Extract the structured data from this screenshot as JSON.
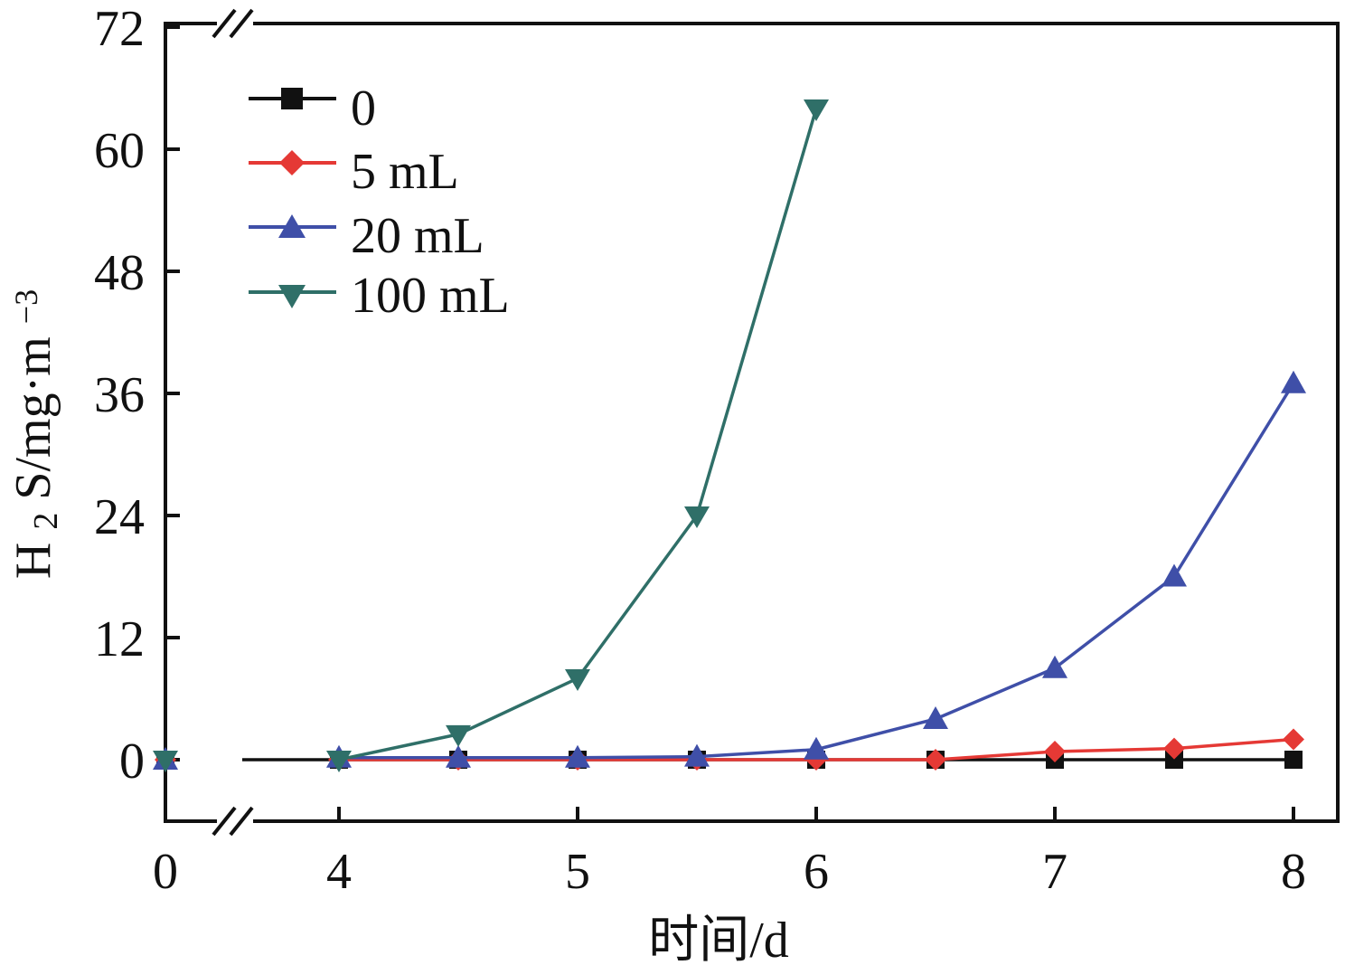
{
  "chart_data": {
    "type": "line",
    "title": "",
    "xlabel": "时间/d",
    "ylabel": "H2S/mg·m−3",
    "ylabel_parts": {
      "prefix": "H",
      "subscript": "2",
      "middle": "S/mg·m",
      "superscript": "−3"
    },
    "x_ticks": [
      "0",
      "4",
      "5",
      "6",
      "7",
      "8"
    ],
    "y_ticks": [
      "0",
      "12",
      "24",
      "36",
      "48",
      "60",
      "72"
    ],
    "xlim": [
      0,
      8
    ],
    "ylim": [
      -6,
      72
    ],
    "x_axis_break": [
      0,
      4
    ],
    "y_axis_break": true,
    "grid": false,
    "legend_position": "top-left",
    "x": [
      0,
      4,
      4.5,
      5,
      5.5,
      6,
      6.5,
      7,
      7.5,
      8
    ],
    "series": [
      {
        "name": "0",
        "color": "#111111",
        "marker": "square",
        "x": [
          0,
          4,
          4.5,
          5,
          5.5,
          6,
          6.5,
          7,
          7.5,
          8
        ],
        "values": [
          0,
          0,
          0,
          0,
          0,
          0,
          0,
          0,
          0,
          0
        ]
      },
      {
        "name": "5 mL",
        "color": "#e53935",
        "marker": "diamond",
        "x": [
          0,
          4,
          4.5,
          5,
          5.5,
          6,
          6.5,
          7,
          7.5,
          8
        ],
        "values": [
          0,
          0,
          0,
          0,
          0,
          0,
          0,
          0.8,
          1.1,
          2.0
        ]
      },
      {
        "name": "20 mL",
        "color": "#3f4fa8",
        "marker": "triangle-up",
        "x": [
          0,
          4,
          4.5,
          5,
          5.5,
          6,
          6.5,
          7,
          7.5,
          8
        ],
        "values": [
          0,
          0.2,
          0.2,
          0.2,
          0.3,
          1.0,
          4.0,
          9.0,
          18.0,
          37.0
        ]
      },
      {
        "name": "100 mL",
        "color": "#2f6f68",
        "marker": "triangle-down",
        "x": [
          0,
          4,
          4.5,
          5,
          5.5,
          6
        ],
        "values": [
          0,
          0,
          2.5,
          8.0,
          24.0,
          64.0
        ]
      }
    ]
  }
}
